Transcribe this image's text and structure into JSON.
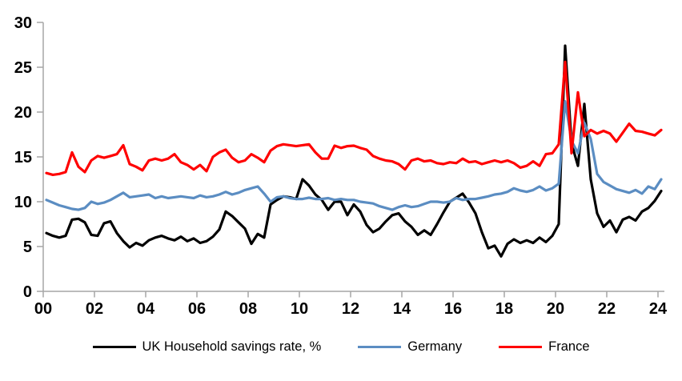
{
  "page": {
    "background": "#FFFFFF"
  },
  "chart_data": {
    "type": "line",
    "title": "",
    "xlabel": "",
    "ylabel": "",
    "grid": false,
    "legend_position": "bottom",
    "axis_color": "#A6A6A6",
    "label_color": "#000000",
    "ylim": [
      0,
      30
    ],
    "y_ticks": [
      0,
      5,
      10,
      15,
      20,
      25,
      30
    ],
    "x_tick_labels": [
      "00",
      "02",
      "04",
      "06",
      "08",
      "10",
      "12",
      "14",
      "16",
      "18",
      "20",
      "22",
      "24"
    ],
    "x_start_year": 2000,
    "frequency": "quarterly",
    "series": [
      {
        "name": "UK Household savings rate, %",
        "color": "#000000",
        "values": [
          6.5,
          6.2,
          6.0,
          6.2,
          8.0,
          8.1,
          7.7,
          6.3,
          6.2,
          7.6,
          7.8,
          6.5,
          5.6,
          4.9,
          5.4,
          5.1,
          5.7,
          6.0,
          6.2,
          5.9,
          5.7,
          6.1,
          5.6,
          5.9,
          5.4,
          5.6,
          6.1,
          6.9,
          8.9,
          8.4,
          7.7,
          7.0,
          5.3,
          6.4,
          6.0,
          9.7,
          10.2,
          10.6,
          10.5,
          10.3,
          12.5,
          11.8,
          10.8,
          10.2,
          9.1,
          10.0,
          10.0,
          8.5,
          9.7,
          8.9,
          7.4,
          6.6,
          7.0,
          7.8,
          8.5,
          8.7,
          7.8,
          7.2,
          6.3,
          6.8,
          6.3,
          7.5,
          8.8,
          10.0,
          10.45,
          10.9,
          9.9,
          8.7,
          6.6,
          4.8,
          5.1,
          3.9,
          5.3,
          5.8,
          5.4,
          5.7,
          5.4,
          6.0,
          5.5,
          6.2,
          7.5,
          27.4,
          16.5,
          14.0,
          20.9,
          12.5,
          8.7,
          7.2,
          7.9,
          6.6,
          8.0,
          8.3,
          7.9,
          8.9,
          9.3,
          10.1,
          11.2
        ]
      },
      {
        "name": "Germany",
        "color": "#5B8DC2",
        "values": [
          10.2,
          9.9,
          9.6,
          9.4,
          9.2,
          9.1,
          9.3,
          10.0,
          9.75,
          9.9,
          10.2,
          10.6,
          11.0,
          10.5,
          10.6,
          10.7,
          10.8,
          10.4,
          10.6,
          10.4,
          10.5,
          10.6,
          10.5,
          10.4,
          10.7,
          10.5,
          10.6,
          10.8,
          11.1,
          10.8,
          11.0,
          11.3,
          11.5,
          11.7,
          10.9,
          10.0,
          10.5,
          10.6,
          10.4,
          10.3,
          10.3,
          10.45,
          10.3,
          10.3,
          10.4,
          10.2,
          10.3,
          10.2,
          10.2,
          10.0,
          9.9,
          9.8,
          9.5,
          9.3,
          9.1,
          9.4,
          9.6,
          9.4,
          9.5,
          9.75,
          10.0,
          10.0,
          9.9,
          10.0,
          10.4,
          10.2,
          10.3,
          10.3,
          10.45,
          10.6,
          10.8,
          10.9,
          11.1,
          11.5,
          11.25,
          11.1,
          11.3,
          11.7,
          11.25,
          11.5,
          12.0,
          21.2,
          16.8,
          15.4,
          18.8,
          17.0,
          13.1,
          12.2,
          11.8,
          11.4,
          11.2,
          11.0,
          11.3,
          10.9,
          11.7,
          11.4,
          12.5
        ]
      },
      {
        "name": "France",
        "color": "#FF0000",
        "values": [
          13.2,
          13.0,
          13.1,
          13.3,
          15.5,
          13.9,
          13.3,
          14.6,
          15.1,
          14.9,
          15.1,
          15.3,
          16.3,
          14.2,
          13.9,
          13.5,
          14.6,
          14.8,
          14.6,
          14.8,
          15.3,
          14.4,
          14.1,
          13.6,
          14.1,
          13.4,
          15.0,
          15.5,
          15.8,
          14.9,
          14.4,
          14.6,
          15.3,
          14.9,
          14.4,
          15.7,
          16.2,
          16.4,
          16.3,
          16.2,
          16.3,
          16.4,
          15.5,
          14.8,
          14.8,
          16.25,
          16.0,
          16.2,
          16.25,
          16.0,
          15.8,
          15.1,
          14.8,
          14.6,
          14.5,
          14.2,
          13.6,
          14.6,
          14.8,
          14.5,
          14.6,
          14.3,
          14.2,
          14.4,
          14.3,
          14.8,
          14.4,
          14.5,
          14.2,
          14.4,
          14.6,
          14.4,
          14.6,
          14.3,
          13.8,
          14.0,
          14.5,
          14.0,
          15.3,
          15.4,
          16.4,
          25.6,
          15.4,
          22.2,
          17.3,
          18.0,
          17.6,
          17.9,
          17.6,
          16.7,
          17.7,
          18.7,
          17.9,
          17.8,
          17.6,
          17.4,
          18.0
        ]
      }
    ]
  }
}
